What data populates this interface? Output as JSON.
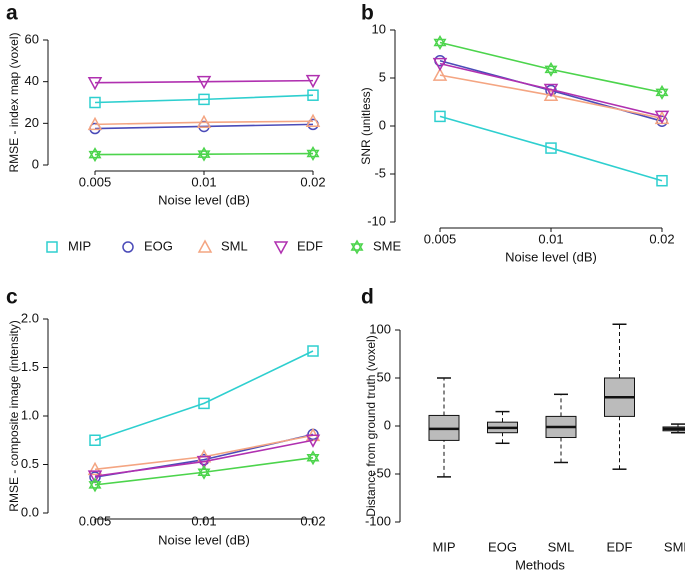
{
  "chart_data": [
    {
      "type": "line",
      "panel": "a",
      "ylabel": "RMSE - index map (voxel)",
      "xlabel": "Noise level (dB)",
      "categories": [
        "0.005",
        "0.01",
        "0.02"
      ],
      "ylim": [
        0,
        60
      ],
      "yticks": [
        0,
        20,
        40,
        60
      ],
      "series": [
        {
          "name": "MIP",
          "color": "#2ecfcf",
          "marker": "square",
          "values": [
            30,
            31.5,
            33.5
          ]
        },
        {
          "name": "EOG",
          "color": "#4b4bb8",
          "marker": "circle",
          "values": [
            17.5,
            18.5,
            19.5
          ]
        },
        {
          "name": "SML",
          "color": "#f4a582",
          "marker": "triangle-up",
          "values": [
            19.5,
            20.5,
            21
          ]
        },
        {
          "name": "EDF",
          "color": "#b030b0",
          "marker": "triangle-down",
          "values": [
            39.5,
            40,
            40.5
          ]
        },
        {
          "name": "SME",
          "color": "#4cd44c",
          "marker": "star",
          "values": [
            5,
            5.2,
            5.5
          ]
        }
      ]
    },
    {
      "type": "line",
      "panel": "b",
      "ylabel": "SNR (unitless)",
      "xlabel": "Noise level (dB)",
      "categories": [
        "0.005",
        "0.01",
        "0.02"
      ],
      "ylim": [
        -10,
        10
      ],
      "yticks": [
        -10,
        -5,
        0,
        5,
        10
      ],
      "series": [
        {
          "name": "MIP",
          "color": "#2ecfcf",
          "marker": "square",
          "values": [
            1,
            -2.3,
            -5.7
          ]
        },
        {
          "name": "EOG",
          "color": "#4b4bb8",
          "marker": "circle",
          "values": [
            6.8,
            3.7,
            0.5
          ]
        },
        {
          "name": "SML",
          "color": "#f4a582",
          "marker": "triangle-up",
          "values": [
            5.3,
            3.2,
            0.8
          ]
        },
        {
          "name": "EDF",
          "color": "#b030b0",
          "marker": "triangle-down",
          "values": [
            6.5,
            3.8,
            1
          ]
        },
        {
          "name": "SME",
          "color": "#4cd44c",
          "marker": "star",
          "values": [
            8.7,
            5.9,
            3.5
          ]
        }
      ]
    },
    {
      "type": "line",
      "panel": "c",
      "ylabel": "RMSE - composite image (intensity)",
      "xlabel": "Noise level (dB)",
      "categories": [
        "0.005",
        "0.01",
        "0.02"
      ],
      "ylim": [
        0,
        2
      ],
      "yticks": [
        {
          "value": 0,
          "label": "0.0"
        },
        0.5,
        {
          "value": 1,
          "label": "1.0"
        },
        1.5,
        {
          "value": 2,
          "label": "2.0"
        }
      ],
      "series": [
        {
          "name": "MIP",
          "color": "#2ecfcf",
          "marker": "square",
          "values": [
            0.75,
            1.13,
            1.67
          ]
        },
        {
          "name": "EOG",
          "color": "#4b4bb8",
          "marker": "circle",
          "values": [
            0.37,
            0.55,
            0.81
          ]
        },
        {
          "name": "SML",
          "color": "#f4a582",
          "marker": "triangle-up",
          "values": [
            0.45,
            0.58,
            0.8
          ]
        },
        {
          "name": "EDF",
          "color": "#b030b0",
          "marker": "triangle-down",
          "values": [
            0.38,
            0.53,
            0.75
          ]
        },
        {
          "name": "SME",
          "color": "#4cd44c",
          "marker": "star",
          "values": [
            0.29,
            0.42,
            0.57
          ]
        }
      ]
    },
    {
      "type": "box",
      "panel": "d",
      "ylabel": "Distance from ground truth (voxel)",
      "xlabel": "Methods",
      "categories": [
        "MIP",
        "EOG",
        "SML",
        "EDF",
        "SME"
      ],
      "ylim": [
        -100,
        100
      ],
      "yticks": [
        -100,
        -50,
        0,
        50,
        100
      ],
      "boxes": [
        {
          "whislo": -53,
          "q1": -15,
          "med": -3,
          "q3": 11,
          "whishi": 50
        },
        {
          "whislo": -18,
          "q1": -7,
          "med": -2,
          "q3": 4,
          "whishi": 15
        },
        {
          "whislo": -38,
          "q1": -12,
          "med": -1,
          "q3": 10,
          "whishi": 33
        },
        {
          "whislo": -45,
          "q1": 10,
          "med": 30,
          "q3": 50,
          "whishi": 106
        },
        {
          "whislo": -7,
          "q1": -5,
          "med": -3,
          "q3": -1,
          "whishi": 2
        }
      ]
    }
  ]
}
